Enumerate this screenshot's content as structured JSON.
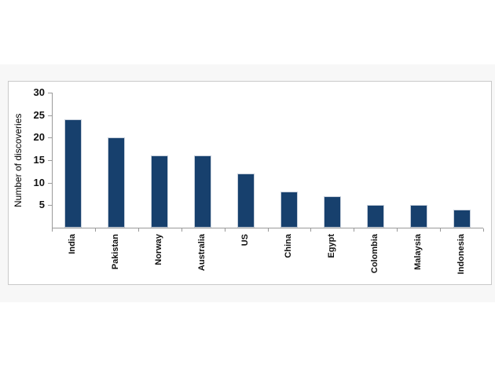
{
  "chart_data": {
    "type": "bar",
    "title": "",
    "categories": [
      "India",
      "Pakistan",
      "Norway",
      "Australia",
      "US",
      "China",
      "Egypt",
      "Colombia",
      "Malaysia",
      "Indonesia"
    ],
    "values": [
      24,
      20,
      16,
      16,
      12,
      8,
      7,
      5,
      5,
      4
    ],
    "xlabel": "",
    "ylabel": "Number of discoveries",
    "ylim": [
      0,
      30
    ],
    "yticks": [
      5,
      10,
      15,
      20,
      25,
      30
    ],
    "grid": "off",
    "legend": "none",
    "bar_color": "#17406d",
    "bar_border_color": "#c6cfdb",
    "axis_color": "#9a9a9a",
    "panel_background": "#ffffff",
    "outer_background": "#f7f7f7"
  }
}
